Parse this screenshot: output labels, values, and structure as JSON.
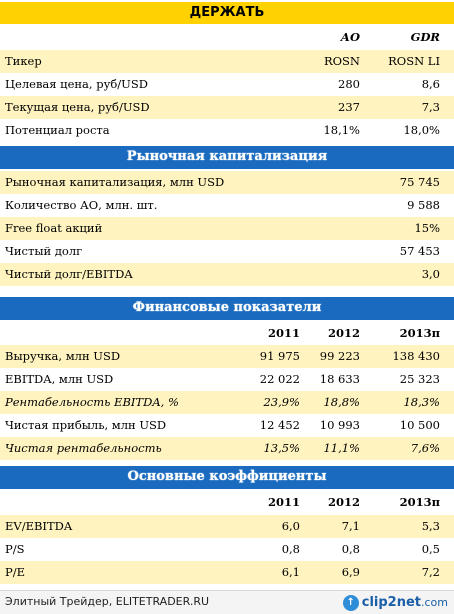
{
  "rating": "ДЕРЖАТЬ",
  "share_header": {
    "ao": "АО",
    "gdr": "GDR"
  },
  "share_rows": [
    {
      "label": "Тикер",
      "ao": "ROSN",
      "gdr": "ROSN LI"
    },
    {
      "label": "Целевая цена, руб/USD",
      "ao": "280",
      "gdr": "8,6"
    },
    {
      "label": "Текущая цена, руб/USD",
      "ao": "237",
      "gdr": "7,3"
    },
    {
      "label": "Потенциал роста",
      "ao": "18,1%",
      "gdr": "18,0%"
    }
  ],
  "market_cap": {
    "title": "Рыночная капитализация",
    "rows": [
      {
        "label": "Рыночная капитализация, млн USD",
        "value": "75 745"
      },
      {
        "label": "Количество АО, млн. шт.",
        "value": "9 588"
      },
      {
        "label": "Free float акций",
        "value": "15%"
      },
      {
        "label": "Чистый долг",
        "value": "57 453"
      },
      {
        "label": "Чистый долг/EBITDA",
        "value": "3,0"
      }
    ]
  },
  "financials": {
    "title": "Финансовые показатели",
    "years": [
      "2011",
      "2012",
      "2013п"
    ],
    "rows": [
      {
        "label": "Выручка, млн USD",
        "values": [
          "91 975",
          "99 223",
          "138 430"
        ],
        "italic": false
      },
      {
        "label": "EBITDA, млн USD",
        "values": [
          "22 022",
          "18 633",
          "25 323"
        ],
        "italic": false
      },
      {
        "label": "Рентабельность EBITDA, %",
        "values": [
          "23,9%",
          "18,8%",
          "18,3%"
        ],
        "italic": true
      },
      {
        "label": "Чистая прибыль, млн USD",
        "values": [
          "12 452",
          "10 993",
          "10 500"
        ],
        "italic": false
      },
      {
        "label": "Чистая рентабельность",
        "values": [
          "13,5%",
          "11,1%",
          "7,6%"
        ],
        "italic": true
      }
    ]
  },
  "ratios": {
    "title": "Основные коэффициенты",
    "years": [
      "2011",
      "2012",
      "2013п"
    ],
    "rows": [
      {
        "label": "EV/EBITDA",
        "values": [
          "6,0",
          "7,1",
          "5,3"
        ]
      },
      {
        "label": "P/S",
        "values": [
          "0,8",
          "0,8",
          "0,5"
        ]
      },
      {
        "label": "P/E",
        "values": [
          "6,1",
          "6,9",
          "7,2"
        ]
      }
    ]
  },
  "footer": {
    "text": "Элитный Трейдер, ELITETRADER.RU",
    "logo_main": "clip2net",
    "logo_suffix": ".com"
  },
  "colors": {
    "yellow": "#ffd200",
    "blue": "#1a6bc0",
    "tint": "#fff3bf"
  }
}
